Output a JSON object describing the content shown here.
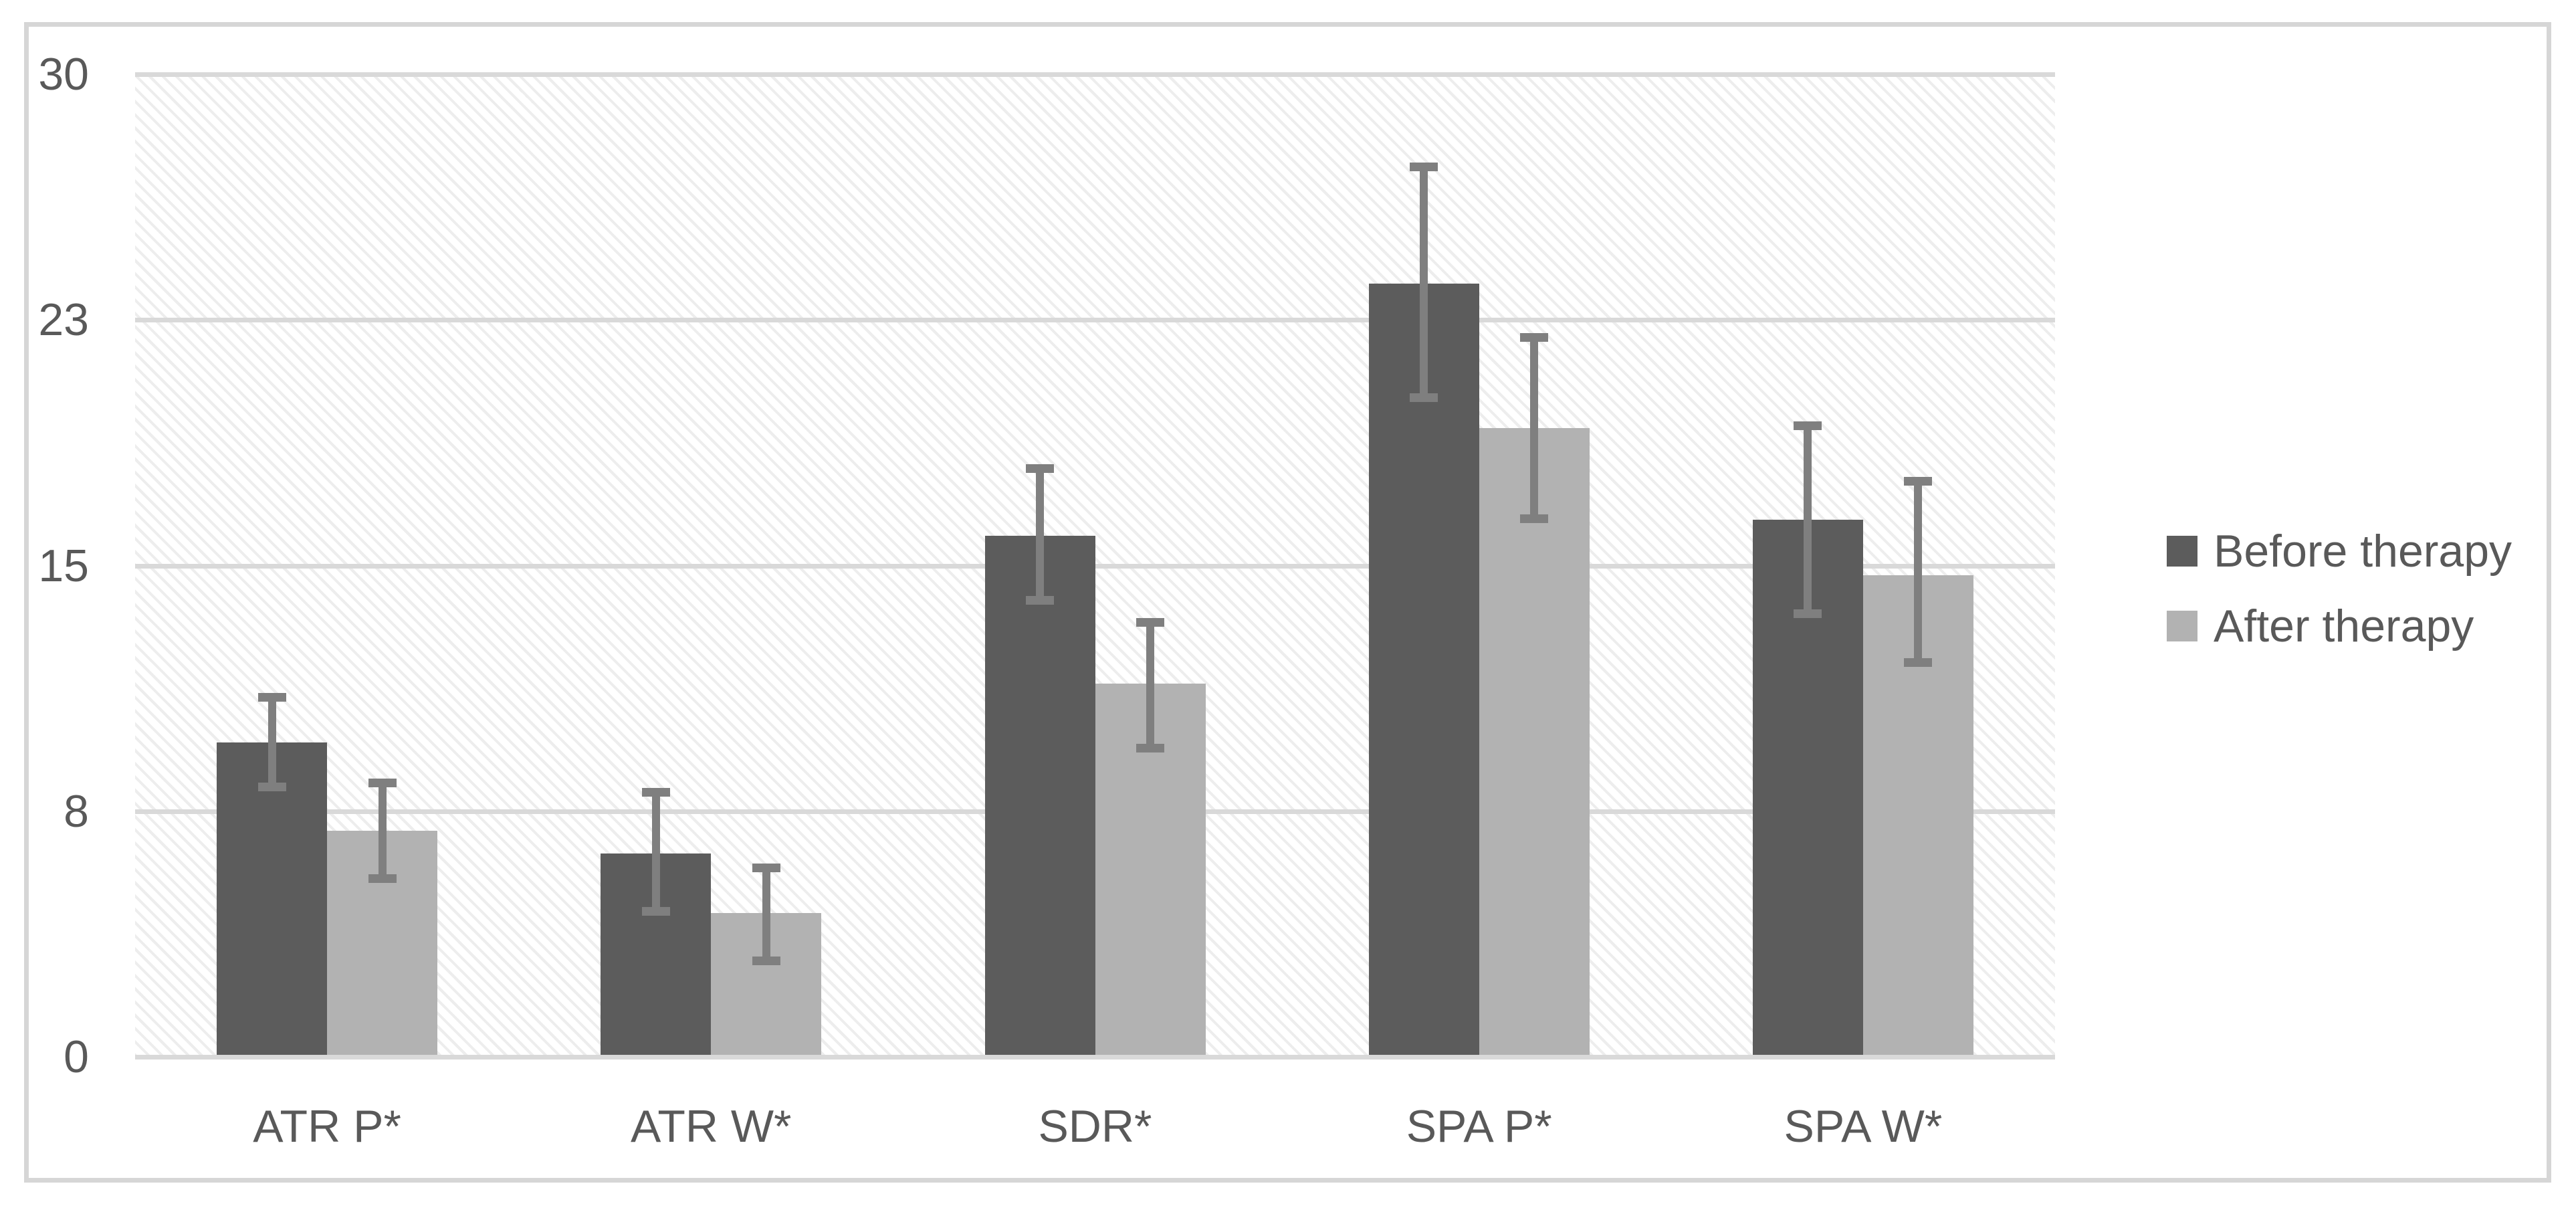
{
  "chart_data": {
    "type": "bar",
    "title": "",
    "categories": [
      "ATR P*",
      "ATR W*",
      "SDR*",
      "SPA P*",
      "SPA W*"
    ],
    "series": [
      {
        "name": "Before therapy",
        "color": "#5c5c5c",
        "values": [
          9.6,
          6.2,
          15.9,
          23.6,
          16.4
        ],
        "error_low": [
          8.1,
          4.3,
          13.8,
          20.0,
          13.4
        ],
        "error_high": [
          11.1,
          8.2,
          18.1,
          27.3,
          19.4
        ]
      },
      {
        "name": "After therapy",
        "color": "#b2b2b2",
        "values": [
          6.9,
          4.4,
          11.4,
          19.2,
          14.7
        ],
        "error_low": [
          5.3,
          2.8,
          9.3,
          16.3,
          11.9
        ],
        "error_high": [
          8.5,
          5.9,
          13.4,
          22.1,
          17.7
        ]
      }
    ],
    "ylim": [
      0,
      30
    ],
    "yticks": [
      {
        "value": 0,
        "label": "0"
      },
      {
        "value": 7.5,
        "label": "8"
      },
      {
        "value": 15,
        "label": "15"
      },
      {
        "value": 22.5,
        "label": "23"
      },
      {
        "value": 30,
        "label": "30"
      }
    ],
    "xlabel": "",
    "ylabel": "",
    "grid": "horizontal",
    "legend_position": "right",
    "plot_background": "diagonal-hatch",
    "colors": {
      "gridline": "#d9d9d9",
      "error_bar": "#7f7f7f",
      "axis_text": "#595959",
      "figure_border": "#d6d6d6",
      "hatch_line": "#e9e9e9",
      "background": "#ffffff"
    }
  }
}
